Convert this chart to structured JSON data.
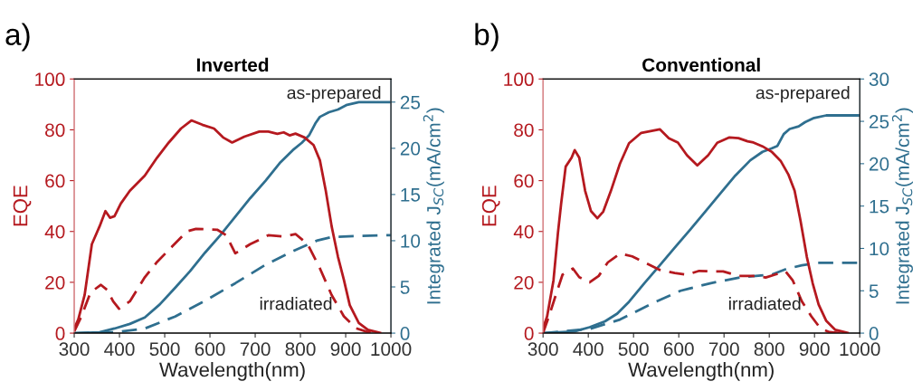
{
  "chart_data": [
    {
      "type": "line",
      "title": "Inverted",
      "xlabel": "Wavelength(nm)",
      "ylabel": "EQE",
      "y2label": "Integrated J$_{SC}$(mA/cm$^{2}$)",
      "xlim": [
        300,
        1000
      ],
      "xticks": [
        300,
        400,
        500,
        600,
        700,
        800,
        900,
        1000
      ],
      "ylim": [
        0,
        100
      ],
      "yticks": [
        0,
        20,
        40,
        60,
        80,
        100
      ],
      "y2lim": [
        0,
        27.5
      ],
      "y2ticks": [
        0,
        5,
        10,
        15,
        20,
        25
      ],
      "grid": false,
      "annotations": [
        "a)",
        "as-prepared",
        "irradiated"
      ],
      "series": [
        {
          "color": "#b5191f",
          "line_style": "solid",
          "x": [
            300,
            309,
            323,
            339,
            356,
            369,
            379,
            389,
            403,
            423,
            456,
            483,
            509,
            536,
            559,
            583,
            609,
            629,
            649,
            676,
            709,
            729,
            749,
            763,
            776,
            789,
            809,
            829,
            843,
            856,
            869,
            883,
            896,
            909,
            929,
            949,
            976
          ],
          "values": [
            1.9,
            5.4,
            15,
            35,
            42,
            48,
            45.4,
            46,
            51,
            56,
            62,
            69,
            75,
            80.5,
            83.7,
            82,
            80.5,
            77,
            75,
            77.3,
            79.3,
            79.3,
            78.4,
            79,
            77.8,
            78.5,
            77,
            74,
            68,
            56,
            42,
            30,
            21,
            11,
            4,
            1.3,
            0.1
          ]
        },
        {
          "color": "#b5191f",
          "line_style": "dashed",
          "x": [
            300,
            316,
            336,
            359,
            373,
            386,
            399,
            423,
            456,
            483,
            516,
            549,
            569,
            616,
            636,
            656,
            689,
            729,
            763,
            789,
            816,
            843,
            869,
            896,
            923,
            949,
            969
          ],
          "values": [
            0.7,
            6.6,
            16,
            19,
            17,
            12.5,
            9.6,
            12.5,
            22,
            28,
            34,
            40,
            41,
            40.7,
            38.5,
            31.4,
            35,
            38.5,
            38,
            39,
            35,
            25.5,
            15,
            6.6,
            1.9,
            0.4,
            0
          ]
        },
        {
          "color": "#2f6f8f",
          "line_style": "solid",
          "axis": "y2",
          "x": [
            300,
            356,
            389,
            423,
            456,
            489,
            523,
            556,
            589,
            623,
            656,
            689,
            723,
            756,
            783,
            803,
            819,
            833,
            843,
            863,
            883,
            903,
            929,
            1000
          ],
          "values": [
            0,
            0.1,
            0.5,
            1,
            1.7,
            3.1,
            4.9,
            6.7,
            8.7,
            10.6,
            12.6,
            14.6,
            16.5,
            18.5,
            19.8,
            20.6,
            21.4,
            22.7,
            23.4,
            23.9,
            24.2,
            24.7,
            25,
            25
          ]
        },
        {
          "color": "#2f6f8f",
          "line_style": "dashed",
          "axis": "y2",
          "x": [
            300,
            389,
            456,
            523,
            589,
            656,
            723,
            789,
            836,
            869,
            923,
            1000
          ],
          "values": [
            0,
            0.1,
            0.5,
            1.8,
            3.5,
            5.4,
            7.4,
            9,
            10,
            10.4,
            10.5,
            10.6
          ]
        }
      ]
    },
    {
      "type": "line",
      "title": "Conventional",
      "xlabel": "Wavelength(nm)",
      "ylabel": "EQE",
      "y2label": "Integrated J$_{SC}$(mA/cm$^{2}$)",
      "xlim": [
        300,
        1000
      ],
      "xticks": [
        300,
        400,
        500,
        600,
        700,
        800,
        900,
        1000
      ],
      "ylim": [
        0,
        100
      ],
      "yticks": [
        0,
        20,
        40,
        60,
        80,
        100
      ],
      "y2lim": [
        0,
        30
      ],
      "y2ticks": [
        0,
        5,
        10,
        15,
        20,
        25,
        30
      ],
      "grid": false,
      "annotations": [
        "b)",
        "as-prepared",
        "irradiated"
      ],
      "series": [
        {
          "color": "#b5191f",
          "line_style": "solid",
          "x": [
            300,
            309,
            323,
            333,
            340,
            350,
            363,
            370,
            380,
            393,
            406,
            420,
            433,
            450,
            470,
            490,
            517,
            558,
            578,
            598,
            618,
            641,
            665,
            685,
            712,
            732,
            752,
            765,
            785,
            805,
            825,
            842,
            856,
            869,
            883,
            896,
            909,
            926,
            946,
            973
          ],
          "values": [
            1.9,
            6.6,
            20.7,
            39.6,
            51,
            65.5,
            69,
            72,
            69,
            56,
            48,
            45.2,
            47.8,
            56,
            66.7,
            74.7,
            78.8,
            80.2,
            76.7,
            75,
            70,
            66,
            70,
            74.9,
            77,
            76.7,
            75.5,
            75,
            73.5,
            71.4,
            67.8,
            62.5,
            56,
            44.3,
            30,
            19.6,
            11.3,
            4.8,
            1.3,
            0.1
          ]
        },
        {
          "color": "#b5191f",
          "line_style": "dashed",
          "x": [
            300,
            313,
            330,
            343,
            366,
            380,
            403,
            423,
            443,
            470,
            497,
            524,
            558,
            591,
            618,
            645,
            671,
            698,
            732,
            765,
            792,
            812,
            836,
            852,
            872,
            893,
            913,
            933,
            960
          ],
          "values": [
            0.1,
            6.6,
            16,
            23,
            25.4,
            22,
            20,
            22.5,
            27.8,
            31.3,
            30.2,
            27.8,
            24.9,
            23.7,
            23,
            24.5,
            24.3,
            24.3,
            22.5,
            22.5,
            21.9,
            23,
            24.3,
            20.7,
            12.5,
            6.6,
            1.9,
            0.4,
            0
          ]
        },
        {
          "color": "#2f6f8f",
          "line_style": "solid",
          "axis": "y2",
          "x": [
            300,
            370,
            403,
            437,
            464,
            490,
            524,
            558,
            591,
            625,
            658,
            692,
            725,
            758,
            785,
            805,
            818,
            832,
            845,
            865,
            879,
            899,
            926,
            1000
          ],
          "values": [
            0,
            0.2,
            0.7,
            1.4,
            2.3,
            3.7,
            5.9,
            8,
            10.1,
            12.2,
            14.3,
            16.5,
            18.6,
            20.4,
            21.4,
            21.8,
            22.1,
            23.5,
            24.1,
            24.4,
            24.9,
            25.4,
            25.7,
            25.7
          ]
        },
        {
          "color": "#2f6f8f",
          "line_style": "dashed",
          "axis": "y2",
          "x": [
            300,
            403,
            470,
            537,
            604,
            671,
            738,
            805,
            839,
            872,
            906,
            1000
          ],
          "values": [
            0,
            0.5,
            1.6,
            3.4,
            5,
            5.9,
            6.6,
            6.9,
            7.6,
            8,
            8.3,
            8.3
          ]
        }
      ]
    }
  ]
}
